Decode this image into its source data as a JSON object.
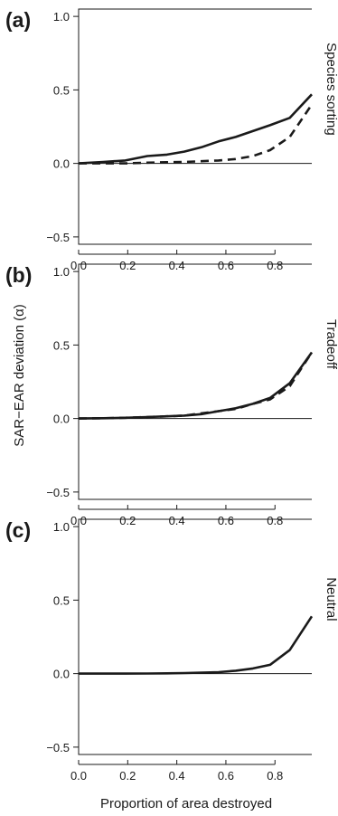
{
  "figure": {
    "ylabel": "SAR−EAR deviation (α)",
    "xlabel": "Proportion of area destroyed"
  },
  "chart_data": [
    {
      "type": "line",
      "panel_label": "(a)",
      "title": "Species sorting",
      "x": [
        0.0,
        0.1,
        0.19,
        0.28,
        0.36,
        0.43,
        0.5,
        0.57,
        0.64,
        0.71,
        0.78,
        0.86,
        0.95
      ],
      "series": [
        {
          "style": "solid",
          "values": [
            0.0,
            0.01,
            0.02,
            0.05,
            0.06,
            0.08,
            0.11,
            0.15,
            0.18,
            0.22,
            0.26,
            0.31,
            0.47
          ]
        },
        {
          "style": "dashed",
          "values": [
            0.0,
            0.0,
            0.0,
            0.005,
            0.008,
            0.01,
            0.015,
            0.02,
            0.03,
            0.05,
            0.09,
            0.18,
            0.4
          ]
        }
      ],
      "xticks": [
        "0.0",
        "0.2",
        "0.4",
        "0.6",
        "0.8"
      ],
      "yticks": [
        "−0.5",
        "0.0",
        "0.5",
        "1.0"
      ],
      "xlim": [
        0,
        0.95
      ],
      "ylim": [
        -0.55,
        1.05
      ],
      "reference_line": 0
    },
    {
      "type": "line",
      "panel_label": "(b)",
      "title": "Tradeoff",
      "x": [
        0.0,
        0.1,
        0.19,
        0.28,
        0.36,
        0.43,
        0.5,
        0.57,
        0.64,
        0.71,
        0.78,
        0.86,
        0.95
      ],
      "series": [
        {
          "style": "solid",
          "values": [
            0.0,
            0.002,
            0.005,
            0.01,
            0.015,
            0.02,
            0.03,
            0.05,
            0.07,
            0.1,
            0.14,
            0.24,
            0.45
          ]
        },
        {
          "style": "dashed",
          "values": [
            0.0,
            0.002,
            0.005,
            0.01,
            0.015,
            0.02,
            0.035,
            0.05,
            0.065,
            0.1,
            0.13,
            0.22,
            0.45
          ]
        }
      ],
      "xticks": [
        "0.0",
        "0.2",
        "0.4",
        "0.6",
        "0.8"
      ],
      "yticks": [
        "−0.5",
        "0.0",
        "0.5",
        "1.0"
      ],
      "xlim": [
        0,
        0.95
      ],
      "ylim": [
        -0.55,
        1.05
      ],
      "reference_line": 0
    },
    {
      "type": "line",
      "panel_label": "(c)",
      "title": "Neutral",
      "x": [
        0.0,
        0.1,
        0.19,
        0.28,
        0.36,
        0.43,
        0.5,
        0.57,
        0.64,
        0.71,
        0.78,
        0.86,
        0.95
      ],
      "series": [
        {
          "style": "solid",
          "values": [
            0.0,
            0.0,
            0.0,
            0.001,
            0.002,
            0.004,
            0.007,
            0.01,
            0.02,
            0.035,
            0.06,
            0.16,
            0.39
          ]
        }
      ],
      "xticks": [
        "0.0",
        "0.2",
        "0.4",
        "0.6",
        "0.8"
      ],
      "yticks": [
        "−0.5",
        "0.0",
        "0.5",
        "1.0"
      ],
      "xlim": [
        0,
        0.95
      ],
      "ylim": [
        -0.55,
        1.05
      ],
      "reference_line": 0
    }
  ]
}
